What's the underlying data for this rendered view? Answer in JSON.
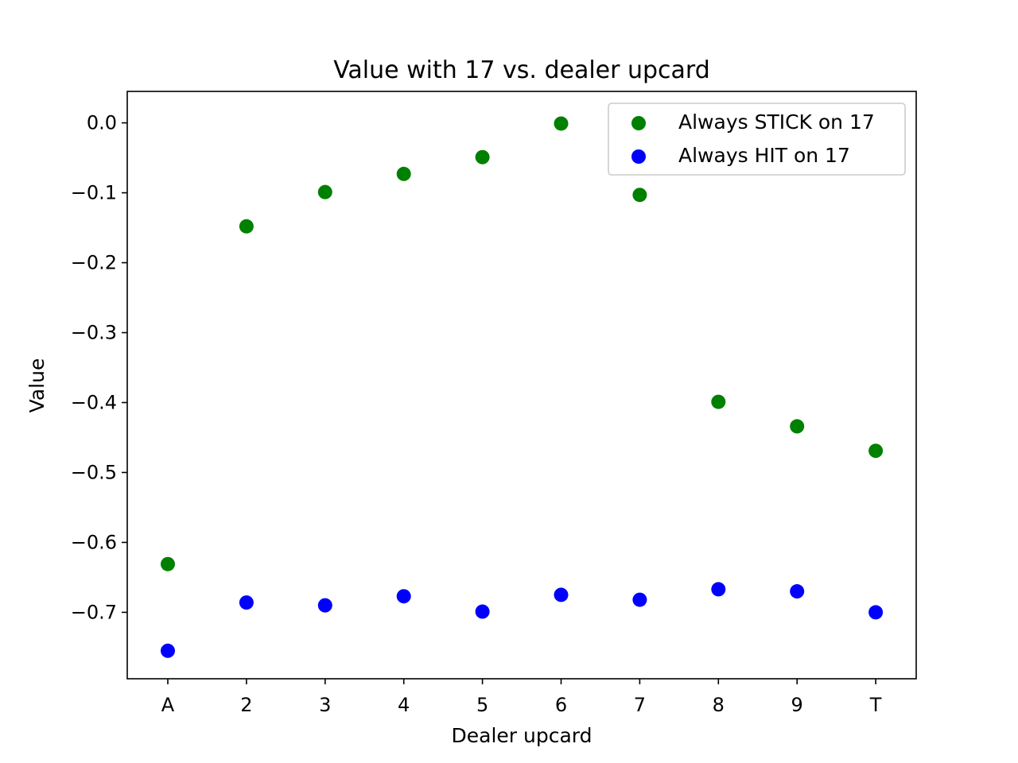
{
  "chart_data": {
    "type": "scatter",
    "title": "Value with 17 vs. dealer upcard",
    "xlabel": "Dealer upcard",
    "ylabel": "Value",
    "categories": [
      "A",
      "2",
      "3",
      "4",
      "5",
      "6",
      "7",
      "8",
      "9",
      "T"
    ],
    "ylim": [
      -0.795,
      0.045
    ],
    "yticks": [
      0.0,
      -0.1,
      -0.2,
      -0.3,
      -0.4,
      -0.5,
      -0.6,
      -0.7
    ],
    "ytick_labels": [
      "0.0",
      "−0.1",
      "−0.2",
      "−0.3",
      "−0.4",
      "−0.5",
      "−0.6",
      "−0.7"
    ],
    "grid": false,
    "legend_position": "top-right",
    "series": [
      {
        "name": "Always STICK on 17",
        "color": "#008000",
        "values": [
          -0.631,
          -0.148,
          -0.099,
          -0.073,
          -0.049,
          -0.001,
          -0.103,
          -0.399,
          -0.434,
          -0.469
        ]
      },
      {
        "name": "Always HIT on 17",
        "color": "#0000ff",
        "values": [
          -0.755,
          -0.686,
          -0.69,
          -0.677,
          -0.699,
          -0.675,
          -0.682,
          -0.667,
          -0.67,
          -0.7
        ]
      }
    ]
  }
}
